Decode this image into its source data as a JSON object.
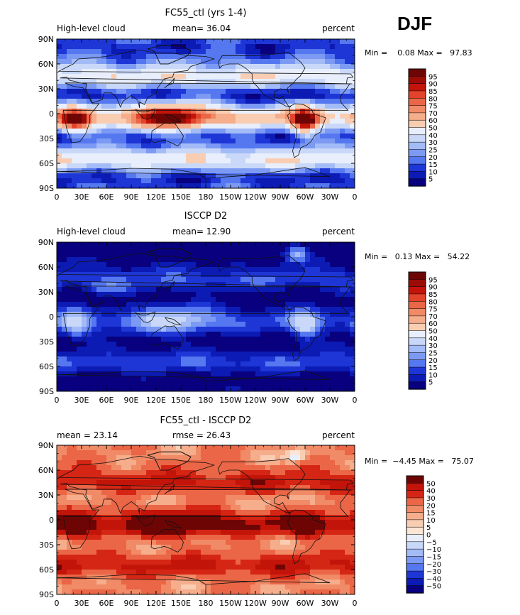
{
  "season": "DJF",
  "land_outline_color": "#111111",
  "colors": {
    "sequential": [
      "#08007f",
      "#0c1bb4",
      "#1e36d6",
      "#3a55e6",
      "#5577f0",
      "#7c9af3",
      "#a3bbf6",
      "#c9d8f8",
      "#e8eefb",
      "#fbe6d6",
      "#f9cdb2",
      "#f5ad8b",
      "#f18a66",
      "#ea6646",
      "#e2432a",
      "#d52514",
      "#c31409",
      "#9b0c06",
      "#6e0505"
    ],
    "diverging": [
      "#08007f",
      "#0c1bb4",
      "#1e36d6",
      "#3a55e6",
      "#5577f0",
      "#7c9af3",
      "#a3bbf6",
      "#c9d8f8",
      "#e8eefb",
      "#fff8f0",
      "#fbe6d6",
      "#f9cdb2",
      "#f5ad8b",
      "#f18a66",
      "#ea6646",
      "#e2432a",
      "#d52514",
      "#c31409",
      "#6e0505"
    ]
  },
  "chart_data": [
    {
      "type": "heatmap",
      "title": "FC55_ctl (yrs 1-4)",
      "left_label": "High-level cloud",
      "center_label": "mean=  36.04",
      "right_label": "percent",
      "stats": {
        "min": "0.08",
        "max": "97.83",
        "text": "Min =    0.08 Max =   97.83"
      },
      "mean": 36.04,
      "x_ticks": [
        "0",
        "30E",
        "60E",
        "90E",
        "120E",
        "150E",
        "180",
        "150W",
        "120W",
        "90W",
        "60W",
        "30W",
        "0"
      ],
      "y_ticks": [
        "90N",
        "60N",
        "30N",
        "0",
        "30S",
        "60S",
        "90S"
      ],
      "xlim": [
        0,
        360
      ],
      "ylim": [
        -90,
        90
      ],
      "levels": [
        5,
        10,
        15,
        20,
        25,
        30,
        40,
        50,
        60,
        70,
        75,
        80,
        85,
        90,
        95
      ],
      "colorbar_labels": [
        "95",
        "90",
        "85",
        "80",
        "75",
        "70",
        "60",
        "50",
        "40",
        "30",
        "25",
        "20",
        "15",
        "10",
        "5"
      ],
      "palette": "sequential"
    },
    {
      "type": "heatmap",
      "title": "ISCCP D2",
      "left_label": "High-level cloud",
      "center_label": "mean=  12.90",
      "right_label": "percent",
      "stats": {
        "min": "0.13",
        "max": "54.22",
        "text": "Min =   0.13 Max =   54.22"
      },
      "mean": 12.9,
      "x_ticks": [
        "0",
        "30E",
        "60E",
        "90E",
        "120E",
        "150E",
        "180",
        "150W",
        "120W",
        "90W",
        "60W",
        "30W",
        "0"
      ],
      "y_ticks": [
        "90N",
        "60N",
        "30N",
        "0",
        "30S",
        "60S",
        "90S"
      ],
      "xlim": [
        0,
        360
      ],
      "ylim": [
        -90,
        90
      ],
      "levels": [
        5,
        10,
        15,
        20,
        25,
        30,
        40,
        50,
        60,
        70,
        75,
        80,
        85,
        90,
        95
      ],
      "colorbar_labels": [
        "95",
        "90",
        "85",
        "80",
        "75",
        "70",
        "60",
        "50",
        "40",
        "30",
        "25",
        "20",
        "15",
        "10",
        "5"
      ],
      "palette": "sequential"
    },
    {
      "type": "heatmap",
      "title": "FC55_ctl - ISCCP D2",
      "left_label": "mean =  23.14",
      "center_label": "rmse =  26.43",
      "right_label": "percent",
      "stats": {
        "min": "-4.45",
        "max": "75.07",
        "text": "Min =  −4.45 Max =   75.07"
      },
      "mean": 23.14,
      "rmse": 26.43,
      "x_ticks": [
        "0",
        "30E",
        "60E",
        "90E",
        "120E",
        "150E",
        "180",
        "150W",
        "120W",
        "90W",
        "60W",
        "30W",
        "0"
      ],
      "y_ticks": [
        "90N",
        "60N",
        "30N",
        "0",
        "30S",
        "60S",
        "90S"
      ],
      "xlim": [
        0,
        360
      ],
      "ylim": [
        -90,
        90
      ],
      "levels": [
        -50,
        -40,
        -30,
        -20,
        -15,
        -10,
        -5,
        0,
        5,
        10,
        15,
        20,
        30,
        40,
        50
      ],
      "colorbar_labels": [
        "50",
        "40",
        "30",
        "20",
        "15",
        "10",
        "5",
        "0",
        "−5",
        "−10",
        "−15",
        "−20",
        "−30",
        "−40",
        "−50"
      ],
      "palette": "diverging"
    }
  ]
}
